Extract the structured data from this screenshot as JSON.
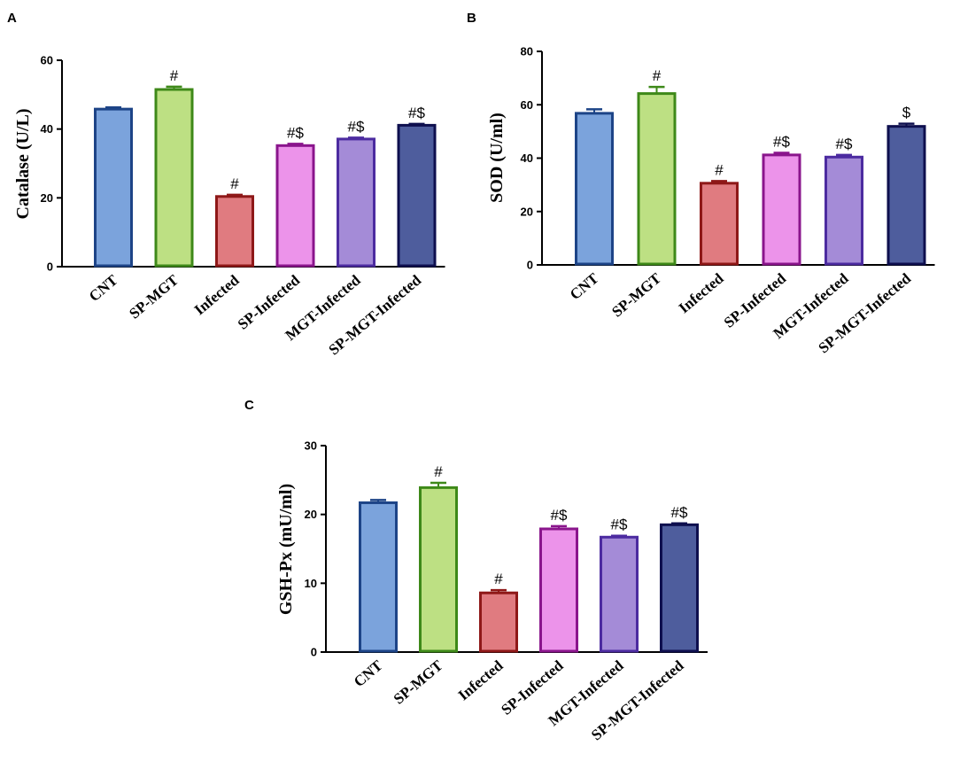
{
  "chart_data": [
    {
      "panel": "A",
      "type": "bar",
      "title": "",
      "xlabel": "",
      "ylabel": "Catalase (U/L)",
      "ylim": [
        0,
        60
      ],
      "yticks": [
        0,
        20,
        40,
        60
      ],
      "categories": [
        "CNT",
        "SP-MGT",
        "Infected",
        "SP-Infected",
        "MGT-Infected",
        "SP-MGT-Infected"
      ],
      "values": [
        45.8,
        51.5,
        20.4,
        35.2,
        37.1,
        41.1
      ],
      "errors": [
        0.5,
        0.8,
        0.5,
        0.5,
        0.4,
        0.4
      ],
      "annotations": [
        "",
        "#",
        "#",
        "#$",
        "#$",
        "#$"
      ],
      "grid": false
    },
    {
      "panel": "B",
      "type": "bar",
      "title": "",
      "xlabel": "",
      "ylabel": "SOD (U/ml)",
      "ylim": [
        0,
        80
      ],
      "yticks": [
        0,
        20,
        40,
        60,
        80
      ],
      "categories": [
        "CNT",
        "SP-MGT",
        "Infected",
        "SP-Infected",
        "MGT-Infected",
        "SP-MGT-Infected"
      ],
      "values": [
        56.8,
        64.2,
        30.6,
        41.2,
        40.4,
        51.9
      ],
      "errors": [
        1.5,
        2.5,
        0.8,
        0.8,
        0.8,
        1.0
      ],
      "annotations": [
        "",
        "#",
        "#",
        "#$",
        "#$",
        "$"
      ],
      "grid": false
    },
    {
      "panel": "C",
      "type": "bar",
      "title": "",
      "xlabel": "",
      "ylabel": "GSH-Px (mU/ml)",
      "ylim": [
        0,
        30
      ],
      "yticks": [
        0,
        10,
        20,
        30
      ],
      "categories": [
        "CNT",
        "SP-MGT",
        "Infected",
        "SP-Infected",
        "MGT-Infected",
        "SP-MGT-Infected"
      ],
      "values": [
        21.7,
        23.9,
        8.6,
        17.9,
        16.7,
        18.5
      ],
      "errors": [
        0.4,
        0.7,
        0.4,
        0.4,
        0.2,
        0.2
      ],
      "annotations": [
        "",
        "#",
        "#",
        "#$",
        "#$",
        "#$"
      ],
      "grid": false
    }
  ],
  "colors": {
    "fills": [
      "#7ba3dc",
      "#bde083",
      "#e07b80",
      "#ec93ea",
      "#a48bd7",
      "#4e5d9d"
    ],
    "strokes": [
      "#1d4487",
      "#3e8919",
      "#8e1818",
      "#8a158c",
      "#4c2ba0",
      "#0e0f4e"
    ],
    "axis": "#000000"
  }
}
